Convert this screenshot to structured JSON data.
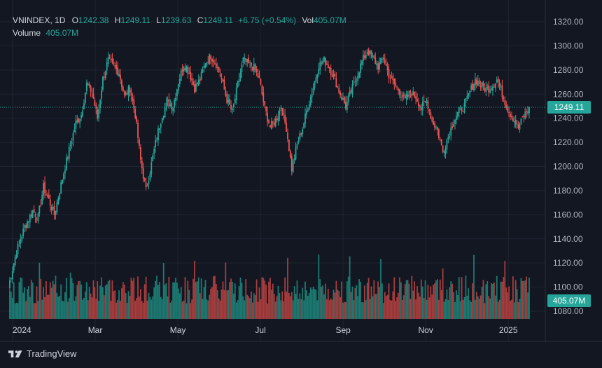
{
  "legend": {
    "symbol": "VNINDEX",
    "interval": "1D",
    "open_label": "O",
    "open": "1242.38",
    "high_label": "H",
    "high": "1249.11",
    "low_label": "L",
    "low": "1239.63",
    "close_label": "C",
    "close": "1249.11",
    "change": "+6.75 (+0.54%)",
    "vol_label": "Vol",
    "vol": "405.07M",
    "volume_label": "Volume",
    "volume_value": "405.07M"
  },
  "brand": {
    "name": "TradingView"
  },
  "colors": {
    "background": "#131722",
    "grid": "#1f2430",
    "up": "#26a69a",
    "down": "#ef5350",
    "text": "#b2b5be",
    "up_volume": "#1c7a72",
    "down_volume": "#a83d3d"
  },
  "chart_data": {
    "type": "candlestick",
    "y_axis": {
      "ticks": [
        "1320.00",
        "1300.00",
        "1280.00",
        "1260.00",
        "1240.00",
        "1220.00",
        "1200.00",
        "1180.00",
        "1160.00",
        "1140.00",
        "1120.00",
        "1100.00",
        "1080.00"
      ],
      "range": [
        1074,
        1330
      ]
    },
    "x_axis": {
      "ticks": [
        "2024",
        "Mar",
        "May",
        "Jul",
        "Sep",
        "Nov",
        "2025"
      ]
    },
    "last_price": "1249.11",
    "last_volume": "405.07M",
    "price_anchors": [
      [
        0,
        1100
      ],
      [
        6,
        1130
      ],
      [
        12,
        1150
      ],
      [
        18,
        1163
      ],
      [
        22,
        1158
      ],
      [
        26,
        1183
      ],
      [
        30,
        1172
      ],
      [
        34,
        1160
      ],
      [
        38,
        1180
      ],
      [
        42,
        1200
      ],
      [
        46,
        1218
      ],
      [
        50,
        1236
      ],
      [
        54,
        1243
      ],
      [
        58,
        1268
      ],
      [
        62,
        1262
      ],
      [
        66,
        1240
      ],
      [
        70,
        1273
      ],
      [
        74,
        1288
      ],
      [
        78,
        1283
      ],
      [
        82,
        1278
      ],
      [
        86,
        1258
      ],
      [
        90,
        1265
      ],
      [
        94,
        1243
      ],
      [
        98,
        1205
      ],
      [
        102,
        1180
      ],
      [
        106,
        1202
      ],
      [
        110,
        1225
      ],
      [
        114,
        1243
      ],
      [
        118,
        1253
      ],
      [
        122,
        1250
      ],
      [
        126,
        1270
      ],
      [
        130,
        1285
      ],
      [
        134,
        1278
      ],
      [
        138,
        1265
      ],
      [
        142,
        1272
      ],
      [
        146,
        1286
      ],
      [
        150,
        1292
      ],
      [
        154,
        1285
      ],
      [
        158,
        1272
      ],
      [
        162,
        1255
      ],
      [
        166,
        1245
      ],
      [
        170,
        1268
      ],
      [
        174,
        1288
      ],
      [
        178,
        1285
      ],
      [
        182,
        1282
      ],
      [
        186,
        1272
      ],
      [
        190,
        1248
      ],
      [
        194,
        1233
      ],
      [
        198,
        1238
      ],
      [
        202,
        1250
      ],
      [
        206,
        1232
      ],
      [
        210,
        1198
      ],
      [
        214,
        1218
      ],
      [
        218,
        1232
      ],
      [
        222,
        1250
      ],
      [
        226,
        1266
      ],
      [
        230,
        1284
      ],
      [
        234,
        1288
      ],
      [
        238,
        1282
      ],
      [
        242,
        1272
      ],
      [
        246,
        1260
      ],
      [
        250,
        1250
      ],
      [
        254,
        1262
      ],
      [
        258,
        1274
      ],
      [
        262,
        1287
      ],
      [
        266,
        1296
      ],
      [
        270,
        1290
      ],
      [
        274,
        1283
      ],
      [
        278,
        1290
      ],
      [
        282,
        1276
      ],
      [
        286,
        1268
      ],
      [
        290,
        1262
      ],
      [
        294,
        1255
      ],
      [
        298,
        1262
      ],
      [
        302,
        1258
      ],
      [
        306,
        1248
      ],
      [
        310,
        1255
      ],
      [
        314,
        1238
      ],
      [
        318,
        1230
      ],
      [
        322,
        1212
      ],
      [
        326,
        1225
      ],
      [
        330,
        1238
      ],
      [
        334,
        1246
      ],
      [
        338,
        1250
      ],
      [
        342,
        1262
      ],
      [
        346,
        1272
      ],
      [
        350,
        1268
      ],
      [
        354,
        1264
      ],
      [
        358,
        1266
      ],
      [
        362,
        1272
      ],
      [
        366,
        1260
      ],
      [
        370,
        1248
      ],
      [
        374,
        1240
      ],
      [
        378,
        1232
      ],
      [
        382,
        1242
      ],
      [
        386,
        1249.11
      ]
    ]
  }
}
